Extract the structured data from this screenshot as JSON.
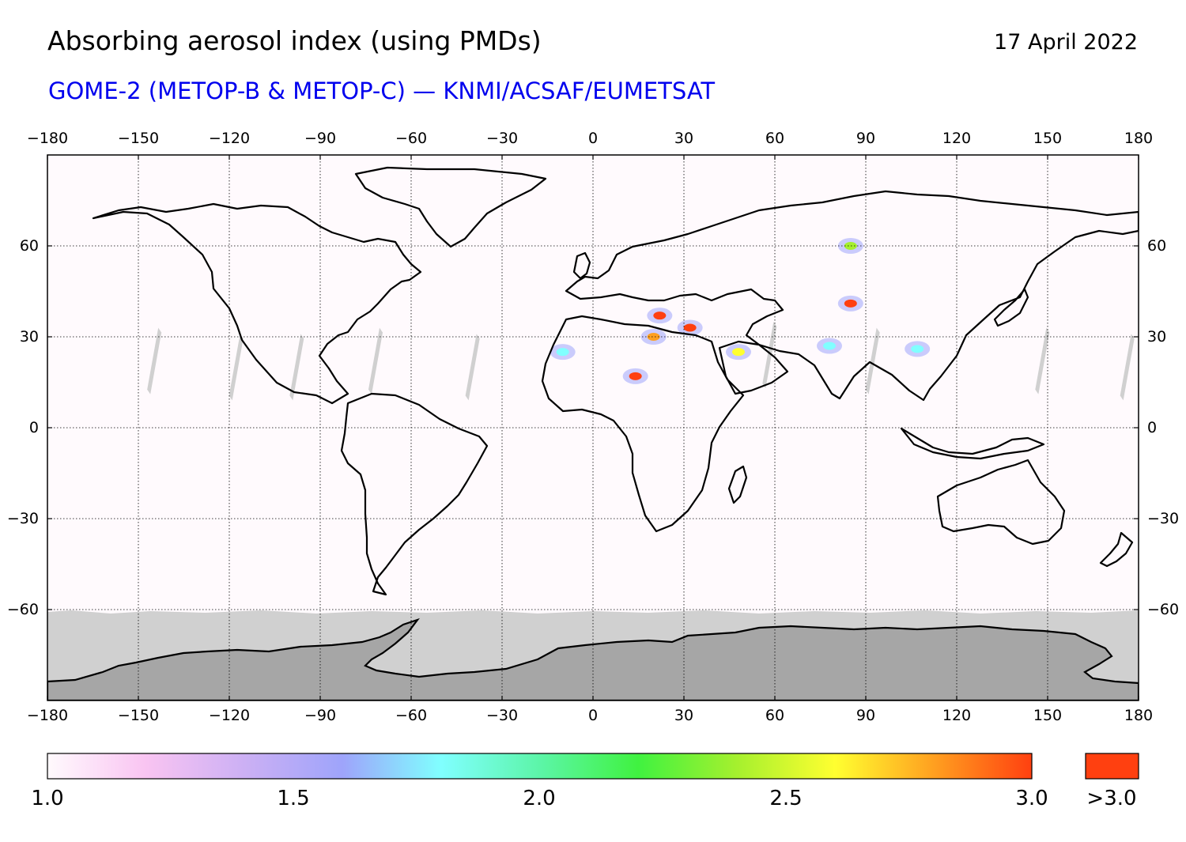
{
  "header": {
    "title": "Absorbing aerosol index (using PMDs)",
    "date": "17 April 2022",
    "subtitle": "GOME-2 (METOP-B & METOP-C) — KNMI/ACSAF/EUMETSAT"
  },
  "colors": {
    "subtitle": "#0000ee",
    "ocean_background": "#fffafd",
    "no_data_gray": "#d0d0d0",
    "antarctica_fill": "#a6a6a6",
    "coastline": "#000000",
    "overflow_swatch": "#ff4010"
  },
  "map": {
    "projection": "equirectangular",
    "lon_range": [
      -180,
      180
    ],
    "lat_range": [
      -90,
      90
    ],
    "x_ticks": [
      "−180",
      "−150",
      "−120",
      "−90",
      "−60",
      "−30",
      "0",
      "30",
      "60",
      "90",
      "120",
      "150",
      "180"
    ],
    "y_ticks": [
      "60",
      "30",
      "0",
      "−30",
      "−60"
    ],
    "gridlines": "dotted",
    "aerosol_hotspots": [
      {
        "region": "Eastern Mediterranean / Egypt",
        "lon": 32,
        "lat": 33,
        "value": 3.2
      },
      {
        "region": "Greece",
        "lon": 22,
        "lat": 37,
        "value": 3.1
      },
      {
        "region": "Libya",
        "lon": 20,
        "lat": 30,
        "value": 2.7
      },
      {
        "region": "Central Sahara",
        "lon": 14,
        "lat": 17,
        "value": 3.0
      },
      {
        "region": "Arabian Peninsula",
        "lon": 48,
        "lat": 25,
        "value": 2.5
      },
      {
        "region": "Taklamakan",
        "lon": 85,
        "lat": 41,
        "value": 2.9
      },
      {
        "region": "Western Sahara",
        "lon": -10,
        "lat": 25,
        "value": 1.8
      },
      {
        "region": "Kazakhstan",
        "lon": 85,
        "lat": 60,
        "value": 2.4
      },
      {
        "region": "India",
        "lon": 78,
        "lat": 27,
        "value": 1.7
      },
      {
        "region": "Southeast China",
        "lon": 107,
        "lat": 26,
        "value": 1.8
      }
    ]
  },
  "colorbar": {
    "colors": [
      "#fffafd",
      "#f9c4f2",
      "#ccb0f4",
      "#9ea4fb",
      "#80ffff",
      "#5cf5a8",
      "#40f240",
      "#a5f02e",
      "#ffff30",
      "#ffa020",
      "#ff4010"
    ],
    "labels": [
      "1.0",
      "1.5",
      "2.0",
      "2.5",
      "3.0"
    ],
    "overflow_label": ">3.0"
  }
}
